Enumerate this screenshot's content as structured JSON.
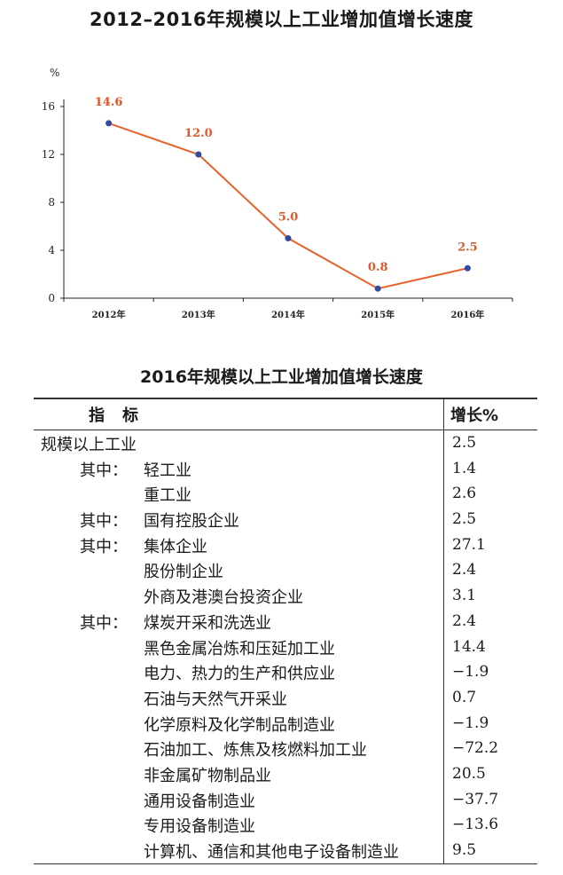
{
  "chart_data": {
    "type": "line",
    "title": "2012–2016年规模以上工业增加值增长速度",
    "ylabel": "%",
    "xlabel": "",
    "categories": [
      "2012年",
      "2013年",
      "2014年",
      "2015年",
      "2016年"
    ],
    "values": [
      14.6,
      12.0,
      5.0,
      0.8,
      2.5
    ],
    "data_labels": [
      "14.6",
      "12.0",
      "5.0",
      "0.8",
      "2.5"
    ],
    "y_ticks": [
      "0",
      "4",
      "8",
      "12",
      "16"
    ],
    "ylim": [
      0,
      16
    ],
    "grid": false,
    "line_color": "#e8632b",
    "marker_color": "#2f4a9e",
    "label_color": "#e0572a"
  },
  "table": {
    "title": "2016年规模以上工业增加值增长速度",
    "header_indicator": "指标",
    "header_value": "增长%",
    "rows": [
      {
        "prefix": "",
        "name": "规模以上工业",
        "value": "2.5",
        "indent": 0
      },
      {
        "prefix": "其中：",
        "name": "轻工业",
        "value": "1.4",
        "indent": 2
      },
      {
        "prefix": "",
        "name": "重工业",
        "value": "2.6",
        "indent": 2
      },
      {
        "prefix": "其中：",
        "name": "国有控股企业",
        "value": "2.5",
        "indent": 2
      },
      {
        "prefix": "其中：",
        "name": "集体企业",
        "value": "27.1",
        "indent": 2
      },
      {
        "prefix": "",
        "name": "股份制企业",
        "value": "2.4",
        "indent": 2
      },
      {
        "prefix": "",
        "name": "外商及港澳台投资企业",
        "value": "3.1",
        "indent": 2
      },
      {
        "prefix": "其中：",
        "name": "煤炭开采和洗选业",
        "value": "2.4",
        "indent": 2
      },
      {
        "prefix": "",
        "name": "黑色金属冶炼和压延加工业",
        "value": "14.4",
        "indent": 2
      },
      {
        "prefix": "",
        "name": "电力、热力的生产和供应业",
        "value": "−1.9",
        "indent": 2
      },
      {
        "prefix": "",
        "name": "石油与天然气开采业",
        "value": "0.7",
        "indent": 2
      },
      {
        "prefix": "",
        "name": "化学原料及化学制品制造业",
        "value": "−1.9",
        "indent": 2
      },
      {
        "prefix": "",
        "name": "石油加工、炼焦及核燃料加工业",
        "value": "−72.2",
        "indent": 2
      },
      {
        "prefix": "",
        "name": "非金属矿物制品业",
        "value": "20.5",
        "indent": 2
      },
      {
        "prefix": "",
        "name": "通用设备制造业",
        "value": "−37.7",
        "indent": 2
      },
      {
        "prefix": "",
        "name": "专用设备制造业",
        "value": "−13.6",
        "indent": 2
      },
      {
        "prefix": "",
        "name": "计算机、通信和其他电子设备制造业",
        "value": "9.5",
        "indent": 2
      }
    ]
  }
}
